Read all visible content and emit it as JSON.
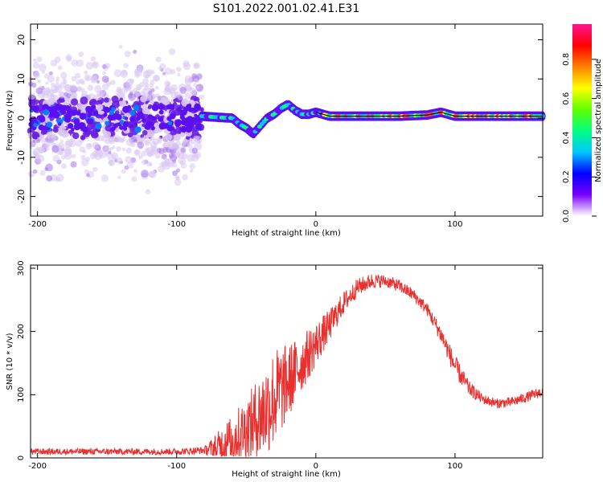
{
  "figure": {
    "title": "S101.2022.001.02.41.E31"
  },
  "colors": {
    "snr_line": "#e8302f",
    "ridge_line": "#000000",
    "scatter_light": "#d9c6f2",
    "scatter_mid": "#a374ee",
    "scatter_dark": "#6a1ee0"
  },
  "chart_data": [
    {
      "type": "heatmap",
      "name": "spectrogram",
      "xlabel": "Height of straight line (km)",
      "ylabel": "Frequency (Hz)",
      "xlim": [
        -205,
        163
      ],
      "ylim": [
        -25,
        24
      ],
      "xticks": [
        -200,
        -100,
        0,
        100
      ],
      "yticks": [
        -20,
        -10,
        0,
        10,
        20
      ],
      "grid": false,
      "colorbar": {
        "label": "Normalized spectral amplitude",
        "range": [
          0.0,
          0.98
        ],
        "ticks": [
          "0.0",
          "0.2",
          "0.4",
          "0.6",
          "0.8"
        ],
        "colormap": [
          "#ffffff",
          "#7a00ff",
          "#0000ff",
          "#00c8ff",
          "#00ff80",
          "#60ff00",
          "#ffff00",
          "#ff8000",
          "#ff0000",
          "#ff1493"
        ]
      },
      "noise_region": {
        "x_range": [
          -205,
          -82
        ],
        "freq_range": [
          -25,
          24
        ]
      },
      "ridge": {
        "x": [
          -82,
          -70,
          -60,
          -55,
          -50,
          -45,
          -40,
          -35,
          -30,
          -25,
          -20,
          -15,
          -10,
          -5,
          0,
          5,
          10,
          20,
          40,
          60,
          80,
          90,
          95,
          100,
          110,
          130,
          150,
          163
        ],
        "y": [
          0.5,
          0.2,
          0.0,
          -1.5,
          -2.5,
          -4.0,
          -2.0,
          0.0,
          1.0,
          2.5,
          3.5,
          2.0,
          1.0,
          1.0,
          1.5,
          1.0,
          0.5,
          0.5,
          0.5,
          0.5,
          0.8,
          1.5,
          1.0,
          0.5,
          0.5,
          0.5,
          0.5,
          0.5
        ]
      }
    },
    {
      "type": "line",
      "name": "snr",
      "xlabel": "Height of straight line (km)",
      "ylabel": "SNR (10 * v/v)",
      "xlim": [
        -205,
        163
      ],
      "ylim": [
        0,
        305
      ],
      "xticks": [
        -200,
        -100,
        0,
        100
      ],
      "yticks": [
        0,
        100,
        200,
        300
      ],
      "grid": false,
      "envelope": {
        "x": [
          -205,
          -150,
          -100,
          -80,
          -70,
          -60,
          -50,
          -40,
          -30,
          -20,
          -10,
          0,
          10,
          20,
          30,
          40,
          50,
          60,
          70,
          80,
          90,
          100,
          110,
          120,
          130,
          140,
          150,
          163
        ],
        "y": [
          10,
          10,
          10,
          12,
          18,
          30,
          45,
          65,
          95,
          120,
          150,
          180,
          210,
          245,
          270,
          280,
          280,
          272,
          258,
          235,
          195,
          145,
          110,
          93,
          86,
          88,
          95,
          105
        ],
        "amp": [
          5,
          5,
          5,
          6,
          25,
          40,
          50,
          70,
          80,
          60,
          45,
          35,
          25,
          18,
          14,
          12,
          10,
          10,
          10,
          10,
          14,
          18,
          12,
          8,
          8,
          8,
          8,
          8
        ]
      }
    }
  ]
}
